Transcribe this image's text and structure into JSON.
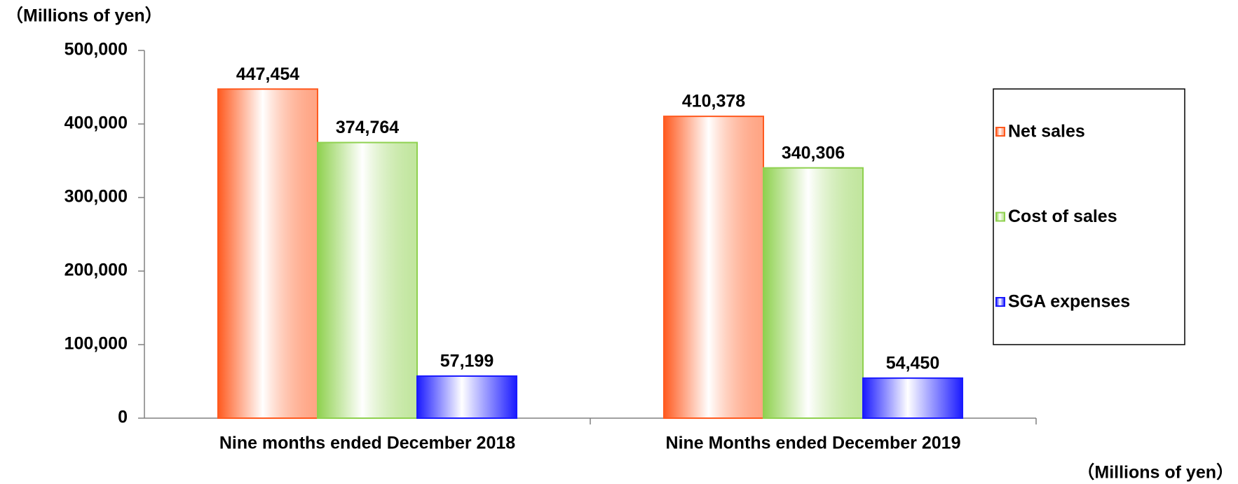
{
  "chart_data": {
    "type": "bar",
    "ylabel": "（Millions of yen）",
    "unit_note": "（Millions of yen）",
    "categories": [
      "Nine months ended December 2018",
      "Nine Months ended December 2019"
    ],
    "series": [
      {
        "name": "Net sales",
        "color": "#ff5a1f",
        "values": [
          447454,
          410378
        ],
        "value_labels": [
          "447,454",
          "410,378"
        ]
      },
      {
        "name": "Cost of sales",
        "color": "#8fd14f",
        "values": [
          374764,
          340306
        ],
        "value_labels": [
          "374,764",
          "340,306"
        ]
      },
      {
        "name": "SGA expenses",
        "color": "#1a1aff",
        "values": [
          57199,
          54450
        ],
        "value_labels": [
          "57,199",
          "54,450"
        ]
      }
    ],
    "ylim": [
      0,
      500000
    ],
    "yticks": [
      0,
      {
        "value": 100000,
        "label": "100,000"
      },
      {
        "value": 200000,
        "label": "200,000"
      },
      {
        "value": 300000,
        "label": "300,000"
      },
      {
        "value": 400000,
        "label": "400,000"
      },
      {
        "value": 500000,
        "label": "500,000"
      }
    ],
    "grid": false,
    "legend": "right"
  }
}
